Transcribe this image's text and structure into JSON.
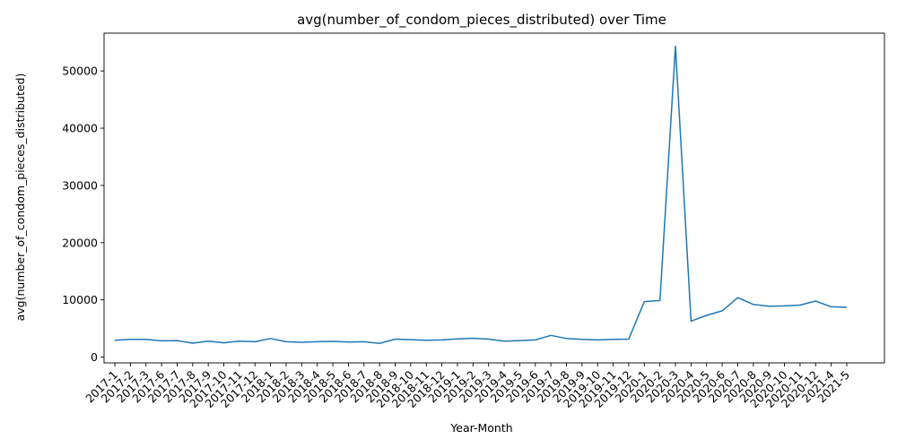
{
  "chart_data": {
    "type": "line",
    "title": "avg(number_of_condom_pieces_distributed) over Time",
    "xlabel": "Year-Month",
    "ylabel": "avg(number_of_condom_pieces_distributed)",
    "ylim": [
      -1000,
      56600
    ],
    "yticks": [
      0,
      10000,
      20000,
      30000,
      40000,
      50000
    ],
    "grid": false,
    "series_color": "#1f77b4",
    "categories": [
      "2017-1",
      "2017-2",
      "2017-3",
      "2017-6",
      "2017-7",
      "2017-8",
      "2017-9",
      "2017-10",
      "2017-11",
      "2017-12",
      "2018-1",
      "2018-2",
      "2018-3",
      "2018-4",
      "2018-5",
      "2018-6",
      "2018-7",
      "2018-8",
      "2018-9",
      "2018-10",
      "2018-11",
      "2018-12",
      "2019-1",
      "2019-2",
      "2019-3",
      "2019-4",
      "2019-5",
      "2019-6",
      "2019-7",
      "2019-8",
      "2019-9",
      "2019-10",
      "2019-11",
      "2019-12",
      "2020-1",
      "2020-2",
      "2020-3",
      "2020-4",
      "2020-5",
      "2020-6",
      "2020-7",
      "2020-8",
      "2020-9",
      "2020-10",
      "2020-11",
      "2020-12",
      "2021-4",
      "2021-5"
    ],
    "series": [
      {
        "values": [
          2950,
          3100,
          3100,
          2850,
          2900,
          2450,
          2800,
          2500,
          2800,
          2700,
          3250,
          2700,
          2600,
          2700,
          2750,
          2650,
          2700,
          2400,
          3150,
          3050,
          2950,
          3000,
          3200,
          3300,
          3150,
          2800,
          2900,
          3000,
          3800,
          3250,
          3100,
          3000,
          3100,
          3150,
          9700,
          9900,
          54300,
          6300,
          7300,
          8100,
          10400,
          9200,
          8900,
          8950,
          9100,
          9800,
          8800,
          8700
        ]
      }
    ]
  }
}
